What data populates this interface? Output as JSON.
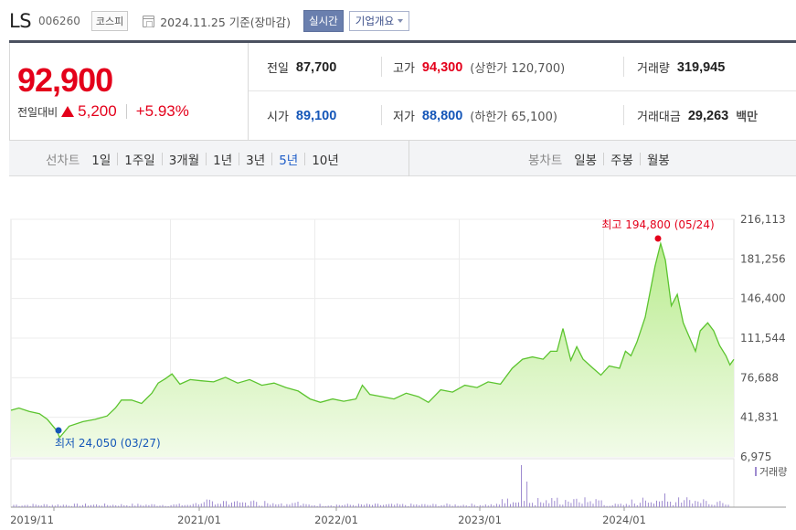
{
  "header": {
    "company_name": "LS",
    "stock_code": "006260",
    "market_badge": "코스피",
    "date_text": "2024.11.25  기준(장마감)",
    "realtime_button": "실시간",
    "overview_button": "기업개요"
  },
  "quote": {
    "price": "92,900",
    "change_label": "전일대비",
    "change_value": "5,200",
    "change_pct": "+5.93%",
    "prev_close_label": "전일",
    "prev_close": "87,700",
    "high_label": "고가",
    "high": "94,300",
    "upper_limit": "(상한가 120,700)",
    "volume_label": "거래량",
    "volume": "319,945",
    "open_label": "시가",
    "open": "89,100",
    "low_label": "저가",
    "low": "88,800",
    "lower_limit": "(하한가 65,100)",
    "trade_value_label": "거래대금",
    "trade_value": "29,263",
    "trade_value_unit": "백만"
  },
  "periods": {
    "line_chart_label": "선차트",
    "line_items": [
      "1일",
      "1주일",
      "3개월",
      "1년",
      "3년",
      "5년",
      "10년"
    ],
    "active_index": 5,
    "candle_chart_label": "봉차트",
    "candle_items": [
      "일봉",
      "주봉",
      "월봉"
    ]
  },
  "colors": {
    "up": "#e4001b",
    "down": "#1456b8",
    "line": "#5cc42f",
    "fill_top": "#b9ec8e",
    "fill_bottom": "#f2fbe9",
    "volume_bar": "#9e8bd0"
  },
  "chart_data": {
    "type": "area",
    "y_ticks": [
      "216,113",
      "181,256",
      "146,400",
      "111,544",
      "76,688",
      "41,831",
      "6,975"
    ],
    "y_tick_values": [
      216113,
      181256,
      146400,
      111544,
      76688,
      41831,
      6975
    ],
    "ylim": [
      6975,
      216113
    ],
    "x_ticks": [
      "2019/11",
      "2021/01",
      "2022/01",
      "2023/01",
      "2024/01"
    ],
    "x_range": [
      "2019-11-25",
      "2024-11-25"
    ],
    "max_annotation": "최고 194,800 (05/24)",
    "max_point": {
      "date": "2024-05-24",
      "value": 194800
    },
    "min_annotation": "최저 24,050 (03/27)",
    "min_point": {
      "date": "2020-03-27",
      "value": 24050
    },
    "volume_legend": "거래량",
    "series": [
      {
        "values": [
          [
            "2019-11-25",
            48000
          ],
          [
            "2019-12-15",
            50000
          ],
          [
            "2020-01-10",
            47000
          ],
          [
            "2020-02-05",
            45000
          ],
          [
            "2020-02-25",
            40000
          ],
          [
            "2020-03-20",
            30000
          ],
          [
            "2020-03-27",
            24050
          ],
          [
            "2020-04-20",
            34000
          ],
          [
            "2020-05-25",
            38000
          ],
          [
            "2020-06-25",
            40000
          ],
          [
            "2020-07-25",
            43000
          ],
          [
            "2020-08-15",
            50000
          ],
          [
            "2020-08-30",
            57000
          ],
          [
            "2020-09-25",
            57000
          ],
          [
            "2020-10-20",
            54000
          ],
          [
            "2020-11-15",
            63000
          ],
          [
            "2020-12-01",
            72000
          ],
          [
            "2020-12-20",
            76000
          ],
          [
            "2021-01-05",
            80000
          ],
          [
            "2021-01-25",
            71000
          ],
          [
            "2021-02-20",
            75000
          ],
          [
            "2021-03-20",
            74000
          ],
          [
            "2021-04-20",
            73000
          ],
          [
            "2021-05-20",
            77000
          ],
          [
            "2021-06-20",
            72000
          ],
          [
            "2021-07-20",
            75000
          ],
          [
            "2021-08-20",
            70000
          ],
          [
            "2021-09-20",
            72000
          ],
          [
            "2021-10-20",
            68000
          ],
          [
            "2021-11-20",
            65000
          ],
          [
            "2021-12-20",
            58000
          ],
          [
            "2022-01-15",
            55000
          ],
          [
            "2022-02-15",
            58000
          ],
          [
            "2022-03-15",
            56000
          ],
          [
            "2022-04-15",
            58000
          ],
          [
            "2022-05-01",
            70000
          ],
          [
            "2022-05-20",
            62000
          ],
          [
            "2022-06-20",
            60000
          ],
          [
            "2022-07-20",
            58000
          ],
          [
            "2022-08-20",
            63000
          ],
          [
            "2022-09-20",
            60000
          ],
          [
            "2022-10-15",
            55000
          ],
          [
            "2022-11-15",
            66000
          ],
          [
            "2022-12-15",
            64000
          ],
          [
            "2023-01-15",
            70000
          ],
          [
            "2023-02-15",
            68000
          ],
          [
            "2023-03-15",
            73000
          ],
          [
            "2023-04-15",
            71000
          ],
          [
            "2023-05-15",
            85000
          ],
          [
            "2023-06-10",
            93000
          ],
          [
            "2023-07-05",
            95000
          ],
          [
            "2023-08-01",
            93000
          ],
          [
            "2023-08-20",
            100000
          ],
          [
            "2023-09-05",
            100000
          ],
          [
            "2023-09-20",
            120000
          ],
          [
            "2023-10-10",
            92000
          ],
          [
            "2023-10-25",
            104000
          ],
          [
            "2023-11-10",
            93000
          ],
          [
            "2023-12-05",
            85000
          ],
          [
            "2023-12-25",
            79000
          ],
          [
            "2024-01-15",
            87000
          ],
          [
            "2024-02-10",
            85000
          ],
          [
            "2024-02-25",
            100000
          ],
          [
            "2024-03-10",
            96000
          ],
          [
            "2024-03-25",
            108000
          ],
          [
            "2024-04-15",
            130000
          ],
          [
            "2024-05-10",
            175000
          ],
          [
            "2024-05-24",
            194800
          ],
          [
            "2024-06-05",
            180000
          ],
          [
            "2024-06-20",
            140000
          ],
          [
            "2024-07-05",
            150000
          ],
          [
            "2024-07-20",
            125000
          ],
          [
            "2024-08-05",
            112000
          ],
          [
            "2024-08-20",
            100000
          ],
          [
            "2024-09-01",
            118000
          ],
          [
            "2024-09-20",
            125000
          ],
          [
            "2024-10-05",
            118000
          ],
          [
            "2024-10-20",
            105000
          ],
          [
            "2024-11-05",
            96000
          ],
          [
            "2024-11-15",
            88000
          ],
          [
            "2024-11-25",
            92900
          ]
        ]
      }
    ]
  }
}
